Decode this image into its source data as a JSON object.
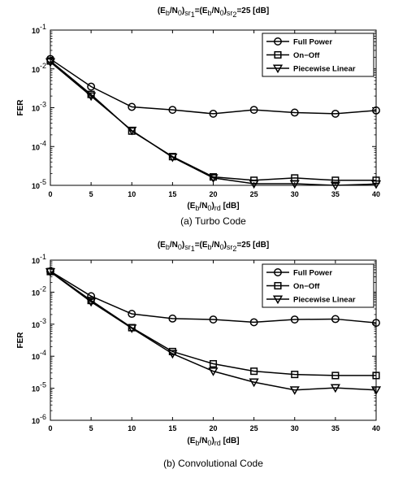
{
  "chart_data": [
    {
      "type": "line",
      "title": {
        "t1": "(E",
        "s1": "b",
        "t2": "/N",
        "s2": "0",
        "t3": ")",
        "s3": "sr",
        "ss3": "1",
        "t4": "=(E",
        "s4": "b",
        "t5": "/N",
        "s5": "0",
        "t6": ")",
        "s6": "sr",
        "ss6": "2",
        "t7": "=25  [dB]"
      },
      "ylabel": "FER",
      "xlabel": {
        "t1": "(E",
        "s1": "b",
        "t2": "/N",
        "s2": "0",
        "t3": ")",
        "s3": "rd",
        "t4": " [dB]"
      },
      "caption": "(a) Turbo Code",
      "x": [
        0,
        5,
        10,
        15,
        20,
        25,
        30,
        35,
        40
      ],
      "xticks": [
        "0",
        "5",
        "10",
        "15",
        "20",
        "25",
        "30",
        "35",
        "40"
      ],
      "yscale": "log",
      "yexp": [
        -5,
        -4,
        -3,
        -2,
        -1
      ],
      "ylim": [
        1e-05,
        0.1
      ],
      "xlim": [
        0,
        40
      ],
      "grid": false,
      "legend_position": "top-right",
      "series": [
        {
          "name": "Full Power",
          "marker": "circle",
          "values": [
            0.018,
            0.0035,
            0.00105,
            0.00088,
            0.0007,
            0.00088,
            0.00075,
            0.0007,
            0.00085
          ]
        },
        {
          "name": "On−Off",
          "marker": "square",
          "values": [
            0.016,
            0.0022,
            0.00025,
            5.5e-05,
            1.65e-05,
            1.35e-05,
            1.55e-05,
            1.35e-05,
            1.35e-05
          ]
        },
        {
          "name": "Piecewise Linear",
          "marker": "triangle",
          "values": [
            0.015,
            0.002,
            0.00026,
            5.3e-05,
            1.55e-05,
            1.1e-05,
            1.1e-05,
            1e-05,
            1.08e-05
          ]
        }
      ]
    },
    {
      "type": "line",
      "title": {
        "t1": "(E",
        "s1": "b",
        "t2": "/N",
        "s2": "0",
        "t3": ")",
        "s3": "sr",
        "ss3": "1",
        "t4": "=(E",
        "s4": "b",
        "t5": "/N",
        "s5": "0",
        "t6": ")",
        "s6": "sr",
        "ss6": "2",
        "t7": "=25  [dB]"
      },
      "ylabel": "FER",
      "xlabel": {
        "t1": "(E",
        "s1": "b",
        "t2": "/N",
        "s2": "0",
        "t3": ")",
        "s3": "rd",
        "t4": " [dB]"
      },
      "caption": "(b) Convolutional Code",
      "x": [
        0,
        5,
        10,
        15,
        20,
        25,
        30,
        35,
        40
      ],
      "xticks": [
        "0",
        "5",
        "10",
        "15",
        "20",
        "25",
        "30",
        "35",
        "40"
      ],
      "yscale": "log",
      "yexp": [
        -6,
        -5,
        -4,
        -3,
        -2,
        -1
      ],
      "ylim": [
        1e-06,
        0.1
      ],
      "xlim": [
        0,
        40
      ],
      "grid": false,
      "legend_position": "top-right",
      "series": [
        {
          "name": "Full Power",
          "marker": "circle",
          "values": [
            0.045,
            0.0075,
            0.0021,
            0.0015,
            0.0014,
            0.00115,
            0.0014,
            0.00145,
            0.0011
          ]
        },
        {
          "name": "On−Off",
          "marker": "square",
          "values": [
            0.044,
            0.0055,
            0.00078,
            0.00014,
            5.8e-05,
            3.4e-05,
            2.7e-05,
            2.5e-05,
            2.5e-05
          ]
        },
        {
          "name": "Piecewise Linear",
          "marker": "triangle",
          "values": [
            0.043,
            0.005,
            0.00075,
            0.00012,
            3.4e-05,
            1.55e-05,
            8.8e-06,
            1.03e-05,
            8.8e-06
          ]
        }
      ]
    }
  ]
}
